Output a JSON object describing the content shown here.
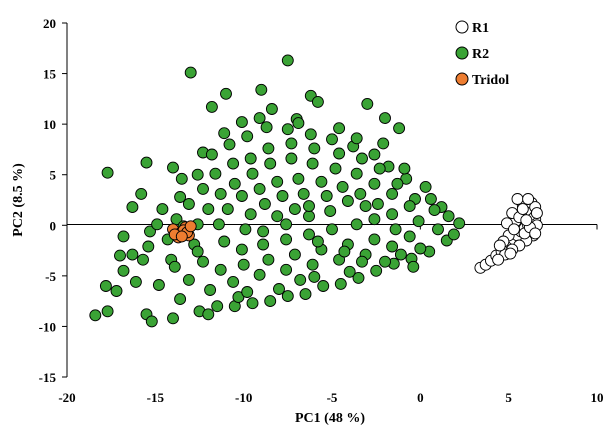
{
  "chart_data": {
    "type": "scatter",
    "title": "",
    "xlabel": "PC1 (48 %)",
    "ylabel": "PC2 (8.5 %)",
    "xlim": [
      -20,
      10
    ],
    "ylim": [
      -15,
      20
    ],
    "xticks": [
      -20,
      -15,
      -10,
      -5,
      0,
      5,
      10
    ],
    "yticks": [
      -15,
      -10,
      -5,
      0,
      5,
      10,
      15,
      20
    ],
    "grid": false,
    "legend_position": "top-right",
    "series": [
      {
        "name": "R1",
        "fill": "#ffffff",
        "stroke": "#000000",
        "points": [
          [
            3.4,
            -4.2
          ],
          [
            3.7,
            -3.9
          ],
          [
            4.0,
            -3.5
          ],
          [
            4.3,
            -3.0
          ],
          [
            4.6,
            -2.6
          ],
          [
            4.9,
            -2.2
          ],
          [
            5.1,
            -1.8
          ],
          [
            5.3,
            -1.4
          ],
          [
            5.5,
            -1.0
          ],
          [
            5.7,
            -0.6
          ],
          [
            5.9,
            -0.3
          ],
          [
            6.1,
            0.0
          ],
          [
            6.3,
            0.3
          ],
          [
            6.4,
            -0.4
          ],
          [
            6.5,
            0.6
          ],
          [
            6.2,
            1.0
          ],
          [
            6.0,
            1.5
          ],
          [
            5.8,
            2.0
          ],
          [
            6.3,
            2.2
          ],
          [
            5.5,
            2.6
          ],
          [
            6.5,
            1.8
          ],
          [
            6.6,
            1.2
          ],
          [
            6.4,
            -1.0
          ],
          [
            6.0,
            -1.5
          ],
          [
            5.6,
            -2.0
          ],
          [
            5.2,
            -2.4
          ],
          [
            4.8,
            -2.9
          ],
          [
            4.4,
            -3.4
          ],
          [
            5.0,
            -1.0
          ],
          [
            5.4,
            0.4
          ],
          [
            5.7,
            1.0
          ],
          [
            6.1,
            2.6
          ],
          [
            4.9,
            0.2
          ],
          [
            5.2,
            1.2
          ],
          [
            5.9,
            -0.8
          ],
          [
            6.6,
            0.0
          ],
          [
            4.7,
            -1.6
          ],
          [
            5.3,
            -0.4
          ],
          [
            6.2,
            -0.2
          ],
          [
            5.6,
            0.8
          ],
          [
            6.0,
            0.5
          ],
          [
            5.1,
            -2.8
          ],
          [
            4.5,
            -2.0
          ],
          [
            6.5,
            -0.8
          ],
          [
            5.8,
            1.6
          ]
        ]
      },
      {
        "name": "R2",
        "fill": "#3aa335",
        "stroke": "#000000",
        "points": [
          [
            -7.5,
            16.3
          ],
          [
            -13.0,
            15.1
          ],
          [
            -11.0,
            13.0
          ],
          [
            -9.0,
            13.4
          ],
          [
            -6.2,
            12.8
          ],
          [
            -5.8,
            12.2
          ],
          [
            -3.0,
            12.0
          ],
          [
            -8.4,
            11.5
          ],
          [
            -11.8,
            11.7
          ],
          [
            -7.0,
            10.5
          ],
          [
            -2.0,
            10.6
          ],
          [
            -1.2,
            9.6
          ],
          [
            -17.7,
            5.2
          ],
          [
            -15.5,
            6.2
          ],
          [
            -12.3,
            7.2
          ],
          [
            -13.5,
            4.6
          ],
          [
            -14.0,
            5.7
          ],
          [
            -15.8,
            3.1
          ],
          [
            -16.3,
            1.8
          ],
          [
            -16.8,
            -1.1
          ],
          [
            -17.0,
            -3.0
          ],
          [
            -16.8,
            -4.5
          ],
          [
            -17.2,
            -6.5
          ],
          [
            -17.7,
            -8.5
          ],
          [
            -18.4,
            -8.9
          ],
          [
            -17.8,
            -6.0
          ],
          [
            -15.5,
            -8.8
          ],
          [
            -15.2,
            -9.5
          ],
          [
            -14.0,
            -9.2
          ],
          [
            -12.5,
            -8.5
          ],
          [
            -11.5,
            -8.0
          ],
          [
            -10.5,
            -8.0
          ],
          [
            -9.5,
            -7.7
          ],
          [
            -8.5,
            -7.5
          ],
          [
            -7.5,
            -7.0
          ],
          [
            -6.5,
            -6.8
          ],
          [
            -5.5,
            -6.0
          ],
          [
            -4.5,
            -5.8
          ],
          [
            -3.5,
            -5.2
          ],
          [
            -2.5,
            -4.5
          ],
          [
            -1.5,
            -3.8
          ],
          [
            -0.5,
            -3.3
          ],
          [
            0.5,
            -2.6
          ],
          [
            1.5,
            -1.5
          ],
          [
            2.2,
            0.2
          ],
          [
            1.2,
            1.8
          ],
          [
            0.3,
            3.8
          ],
          [
            -0.8,
            4.6
          ],
          [
            -1.8,
            5.8
          ],
          [
            -2.6,
            7.0
          ],
          [
            -3.8,
            7.8
          ],
          [
            -5.0,
            8.5
          ],
          [
            -6.2,
            9.0
          ],
          [
            -7.5,
            9.5
          ],
          [
            -8.7,
            9.7
          ],
          [
            -9.8,
            8.8
          ],
          [
            -10.8,
            8.0
          ],
          [
            -11.8,
            7.0
          ],
          [
            -12.6,
            5.0
          ],
          [
            -13.6,
            2.8
          ],
          [
            -14.6,
            1.6
          ],
          [
            -15.3,
            -0.6
          ],
          [
            -15.7,
            -3.4
          ],
          [
            -14.8,
            -5.9
          ],
          [
            -13.6,
            -7.3
          ],
          [
            -12.0,
            -8.8
          ],
          [
            -10.3,
            -7.1
          ],
          [
            -8.0,
            -6.3
          ],
          [
            -6.0,
            -5.1
          ],
          [
            -4.0,
            -4.6
          ],
          [
            -2.0,
            -3.6
          ],
          [
            0.0,
            -2.3
          ],
          [
            1.0,
            -0.4
          ],
          [
            0.8,
            1.5
          ],
          [
            -0.3,
            2.6
          ],
          [
            -1.3,
            4.1
          ],
          [
            -2.3,
            5.6
          ],
          [
            -3.3,
            6.6
          ],
          [
            -4.6,
            7.1
          ],
          [
            -6.0,
            7.6
          ],
          [
            -7.3,
            8.1
          ],
          [
            -8.6,
            7.6
          ],
          [
            -9.6,
            6.6
          ],
          [
            -10.6,
            6.1
          ],
          [
            -11.6,
            5.1
          ],
          [
            -12.3,
            3.6
          ],
          [
            -13.1,
            2.1
          ],
          [
            -13.8,
            0.6
          ],
          [
            -14.3,
            -1.4
          ],
          [
            -14.1,
            -3.4
          ],
          [
            -13.1,
            -5.4
          ],
          [
            -11.9,
            -6.4
          ],
          [
            -10.6,
            -5.6
          ],
          [
            -9.1,
            -4.9
          ],
          [
            -7.6,
            -4.4
          ],
          [
            -6.1,
            -3.9
          ],
          [
            -4.6,
            -3.4
          ],
          [
            -3.1,
            -2.9
          ],
          [
            -1.6,
            -2.1
          ],
          [
            -0.6,
            -1.1
          ],
          [
            -0.1,
            0.4
          ],
          [
            -0.6,
            1.9
          ],
          [
            -1.6,
            3.1
          ],
          [
            -2.6,
            4.1
          ],
          [
            -3.6,
            5.1
          ],
          [
            -4.8,
            5.6
          ],
          [
            -6.1,
            6.1
          ],
          [
            -7.3,
            6.6
          ],
          [
            -8.5,
            6.1
          ],
          [
            -9.5,
            5.1
          ],
          [
            -10.5,
            4.1
          ],
          [
            -11.3,
            3.1
          ],
          [
            -12.0,
            1.6
          ],
          [
            -12.6,
            0.1
          ],
          [
            -12.8,
            -1.9
          ],
          [
            -12.3,
            -3.6
          ],
          [
            -11.3,
            -4.4
          ],
          [
            -10.0,
            -3.9
          ],
          [
            -8.6,
            -3.4
          ],
          [
            -7.1,
            -2.9
          ],
          [
            -5.6,
            -2.4
          ],
          [
            -4.1,
            -1.9
          ],
          [
            -2.6,
            -1.4
          ],
          [
            -1.4,
            -0.4
          ],
          [
            -1.6,
            1.1
          ],
          [
            -2.4,
            2.1
          ],
          [
            -3.4,
            3.1
          ],
          [
            -4.4,
            3.8
          ],
          [
            -5.6,
            4.3
          ],
          [
            -6.9,
            4.6
          ],
          [
            -8.1,
            4.3
          ],
          [
            -9.1,
            3.6
          ],
          [
            -10.1,
            2.9
          ],
          [
            -10.9,
            1.6
          ],
          [
            -11.4,
            0.1
          ],
          [
            -11.1,
            -1.6
          ],
          [
            -10.1,
            -2.4
          ],
          [
            -8.9,
            -1.9
          ],
          [
            -7.6,
            -1.4
          ],
          [
            -6.3,
            -0.9
          ],
          [
            -5.0,
            -0.4
          ],
          [
            -3.6,
            0.1
          ],
          [
            -2.6,
            0.6
          ],
          [
            -3.1,
            1.9
          ],
          [
            -4.1,
            2.4
          ],
          [
            -5.3,
            2.9
          ],
          [
            -6.6,
            3.1
          ],
          [
            -7.8,
            2.9
          ],
          [
            -8.8,
            2.1
          ],
          [
            -9.6,
            1.1
          ],
          [
            -9.9,
            -0.4
          ],
          [
            -8.9,
            -0.6
          ],
          [
            -7.6,
            0.1
          ],
          [
            -6.3,
            0.9
          ],
          [
            -5.1,
            1.4
          ],
          [
            -6.3,
            1.9
          ],
          [
            -7.1,
            1.6
          ],
          [
            -8.1,
            0.9
          ],
          [
            -5.8,
            -1.6
          ],
          [
            -4.3,
            -2.6
          ],
          [
            -3.3,
            -3.6
          ],
          [
            -6.8,
            -5.4
          ],
          [
            -9.8,
            -6.6
          ],
          [
            -12.6,
            -2.6
          ],
          [
            -13.4,
            -0.1
          ],
          [
            -1.1,
            -2.9
          ],
          [
            -0.9,
            5.6
          ],
          [
            -2.1,
            8.1
          ],
          [
            -4.6,
            9.6
          ],
          [
            -6.9,
            10.1
          ],
          [
            -9.1,
            10.6
          ],
          [
            -11.1,
            9.1
          ],
          [
            -10.1,
            10.2
          ],
          [
            -3.6,
            8.6
          ],
          [
            0.6,
            2.6
          ],
          [
            1.6,
            0.9
          ],
          [
            -16.1,
            -5.6
          ],
          [
            -15.4,
            -2.1
          ],
          [
            -14.9,
            0.1
          ],
          [
            -16.3,
            -2.9
          ],
          [
            -13.9,
            -4.1
          ],
          [
            -0.4,
            -4.1
          ],
          [
            1.9,
            -0.9
          ]
        ]
      },
      {
        "name": "Tridol",
        "fill": "#ed7d31",
        "stroke": "#000000",
        "points": [
          [
            -14.0,
            -0.4
          ],
          [
            -13.6,
            -0.8
          ],
          [
            -13.3,
            -0.2
          ],
          [
            -13.1,
            -1.0
          ],
          [
            -13.7,
            -1.2
          ],
          [
            -13.4,
            -0.5
          ],
          [
            -13.9,
            -0.9
          ],
          [
            -13.2,
            -0.7
          ],
          [
            -13.5,
            -1.1
          ],
          [
            -13.0,
            -0.1
          ]
        ]
      }
    ]
  }
}
